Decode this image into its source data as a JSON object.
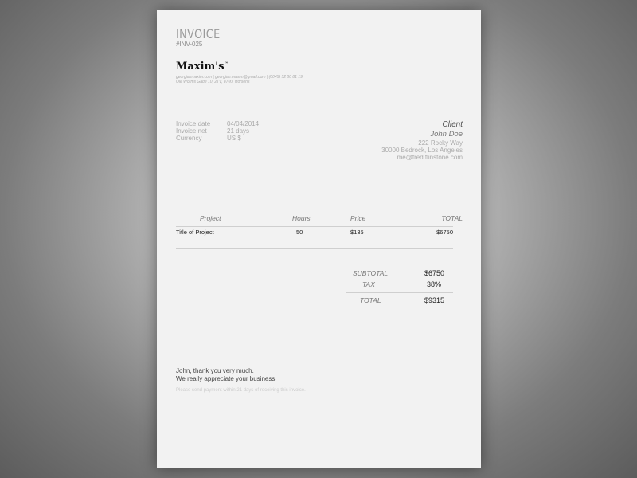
{
  "invoice": {
    "title": "INVOICE",
    "number": "#INV-025"
  },
  "company": {
    "logo": "Maxim's",
    "trademark": "™",
    "contact_line": "georgianmaxim.com | georgian.maxim@gmail.com | (0045) 52 80 81 19",
    "address_line": "Ole Worms Gade 10, 2TV, 8700, Horsens"
  },
  "details": [
    {
      "label": "Invoice date",
      "value": "04/04/2014"
    },
    {
      "label": "Invoice net",
      "value": "21 days"
    },
    {
      "label": "Currency",
      "value": "US $"
    }
  ],
  "client": {
    "heading": "Client",
    "name": "John Doe",
    "street": "222 Rocky Way",
    "city": "30000 Bedrock, Los Angeles",
    "email": "me@fred.flinstone.com"
  },
  "table": {
    "headers": [
      "Project",
      "Hours",
      "Price",
      "TOTAL"
    ],
    "rows": [
      [
        "Title of Project",
        "50",
        "$135",
        "$6750"
      ]
    ]
  },
  "totals": {
    "subtotal_label": "SUBTOTAL",
    "subtotal": "$6750",
    "tax_label": "TAX",
    "tax": "38%",
    "total_label": "TOTAL",
    "total": "$9315"
  },
  "footer": {
    "thanks1": "John, thank you very much.",
    "thanks2": "We really appreciate your business.",
    "note": "Please send payment within 21 days of receiving this invoice."
  }
}
